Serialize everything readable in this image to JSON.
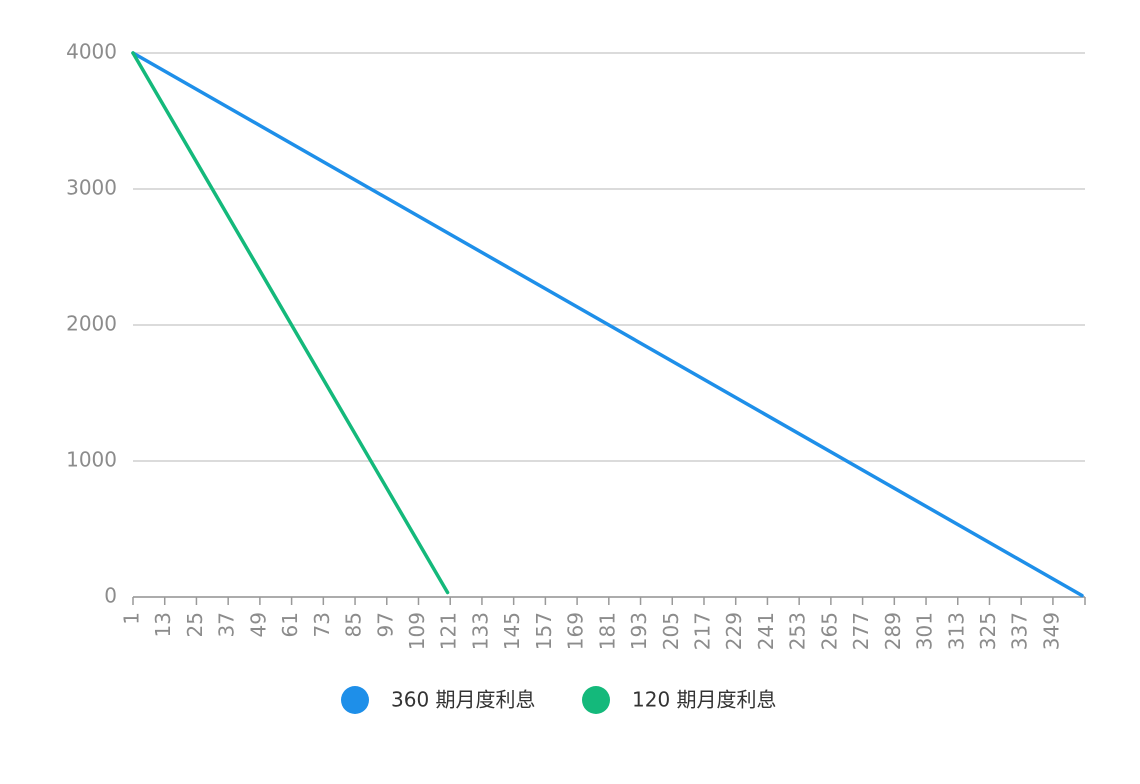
{
  "chart_data": {
    "type": "line",
    "xlim": [
      1,
      360
    ],
    "xticks": [
      1,
      13,
      25,
      37,
      49,
      61,
      73,
      85,
      97,
      109,
      121,
      133,
      145,
      157,
      169,
      181,
      193,
      205,
      217,
      229,
      241,
      253,
      265,
      277,
      289,
      301,
      313,
      325,
      337,
      349
    ],
    "ylim": [
      0,
      4000
    ],
    "yticks": [
      0,
      1000,
      2000,
      3000,
      4000
    ],
    "grid": true,
    "legend": "bottom",
    "series": [
      {
        "name": "360 期月度利息",
        "color": "#1e8fe9",
        "x": [
          1,
          360
        ],
        "values": [
          4000,
          11
        ]
      },
      {
        "name": "120 期月度利息",
        "color": "#14b97b",
        "x": [
          1,
          120
        ],
        "values": [
          4000,
          33
        ]
      }
    ]
  }
}
